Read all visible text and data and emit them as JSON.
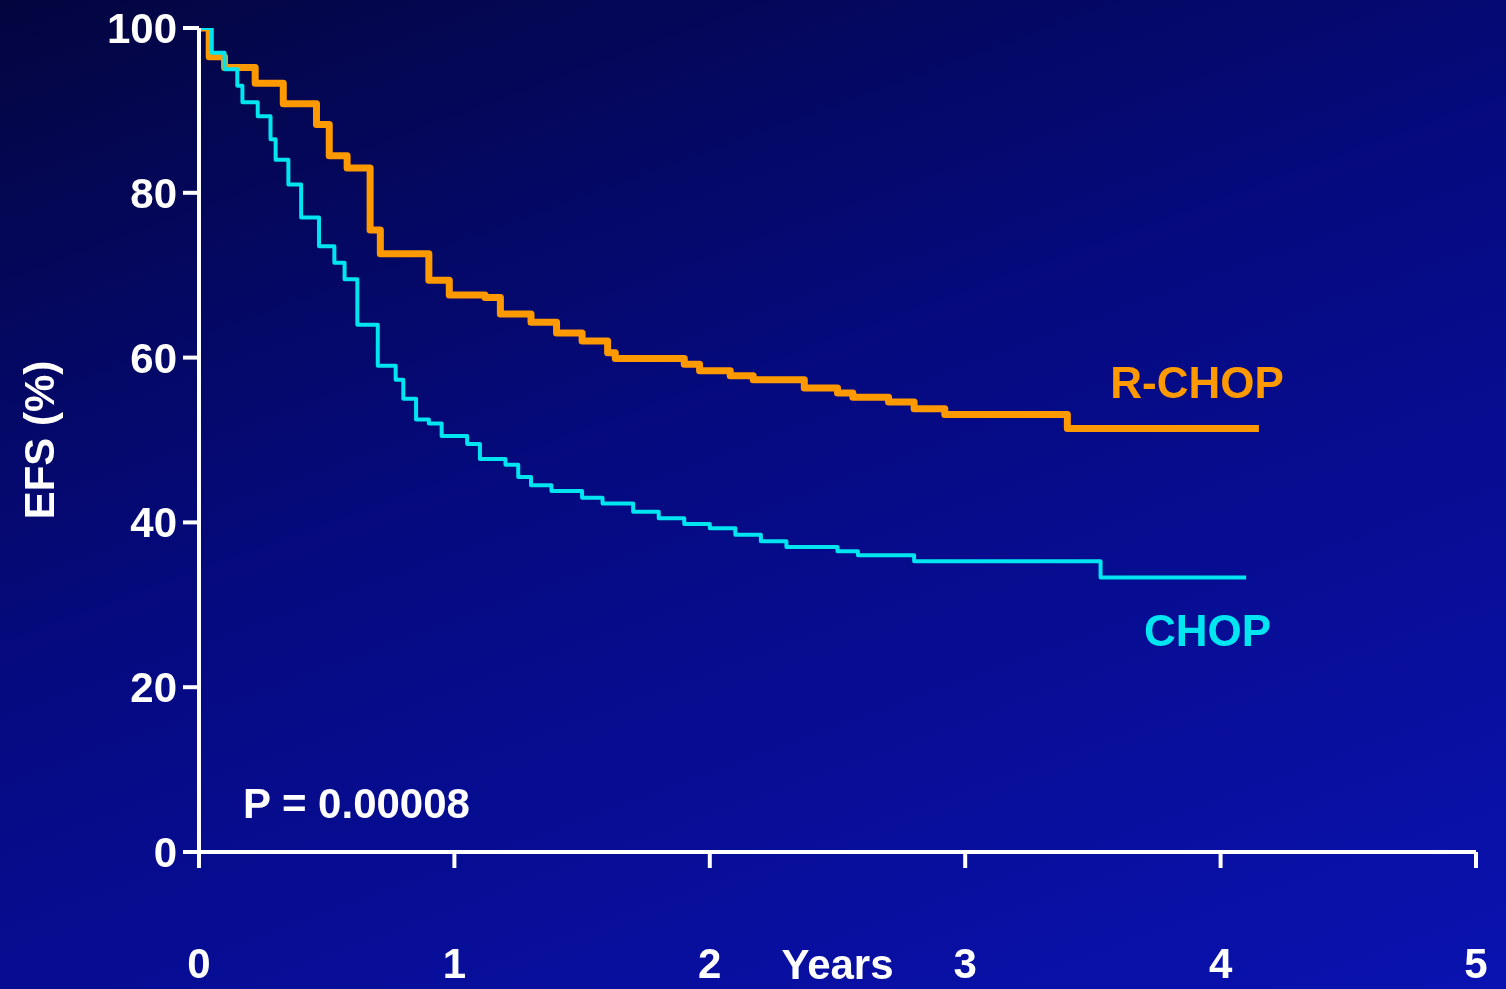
{
  "chart_data": {
    "type": "step",
    "xlabel": "Years",
    "ylabel": "EFS (%)",
    "xlim": [
      0,
      5
    ],
    "xticks": [
      0,
      1,
      2,
      3,
      4,
      5
    ],
    "ylim": [
      0,
      100
    ],
    "yticks": [
      0,
      20,
      40,
      60,
      80,
      100
    ],
    "grid": false,
    "legend": false,
    "marker": "none",
    "line_style": "solid",
    "annotations": [
      "P = 0.00008"
    ],
    "series": [
      {
        "name": "R-CHOP",
        "color": "#ff9900",
        "x": [
          0,
          0.04,
          0.1,
          0.22,
          0.33,
          0.46,
          0.51,
          0.58,
          0.67,
          0.71,
          0.9,
          0.98,
          1.12,
          1.18,
          1.3,
          1.4,
          1.5,
          1.6,
          1.63,
          1.9,
          1.96,
          2.08,
          2.17,
          2.37,
          2.5,
          2.56,
          2.7,
          2.8,
          2.92,
          3.4,
          4.15
        ],
        "values": [
          100,
          96.5,
          95.2,
          93.3,
          90.8,
          88.3,
          84.5,
          83,
          75.5,
          72.6,
          69.4,
          67.6,
          67.3,
          65.3,
          64.3,
          63,
          62,
          60.6,
          59.9,
          59.2,
          58.4,
          57.8,
          57.3,
          56.3,
          55.7,
          55.2,
          54.6,
          53.8,
          53.1,
          51.4,
          51.4
        ]
      },
      {
        "name": "CHOP",
        "color": "#00e5f0",
        "x": [
          0,
          0.05,
          0.1,
          0.15,
          0.17,
          0.23,
          0.28,
          0.3,
          0.35,
          0.4,
          0.47,
          0.53,
          0.57,
          0.62,
          0.7,
          0.77,
          0.8,
          0.85,
          0.9,
          0.95,
          1.05,
          1.1,
          1.2,
          1.25,
          1.3,
          1.38,
          1.5,
          1.58,
          1.7,
          1.8,
          1.9,
          2.0,
          2.1,
          2.2,
          2.3,
          2.5,
          2.58,
          2.8,
          3.53,
          4.1
        ],
        "values": [
          100,
          97,
          95,
          93,
          91,
          89.3,
          86.5,
          84,
          81,
          77,
          73.5,
          71.5,
          69.5,
          64,
          59,
          57.3,
          55,
          52.5,
          52,
          50.5,
          49.5,
          47.7,
          47,
          45.5,
          44.5,
          43.8,
          43,
          42.3,
          41.3,
          40.5,
          39.8,
          39.3,
          38.5,
          37.7,
          37,
          36.5,
          36,
          35.3,
          33.3,
          33.3
        ]
      }
    ]
  }
}
